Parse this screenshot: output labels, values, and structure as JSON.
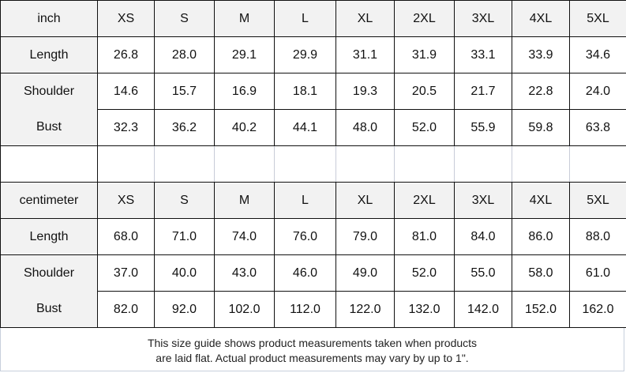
{
  "sizes": [
    "XS",
    "S",
    "M",
    "L",
    "XL",
    "2XL",
    "3XL",
    "4XL",
    "5XL"
  ],
  "tables": [
    {
      "unit": "inch",
      "rows": [
        {
          "label": "Length",
          "values": [
            "26.8",
            "28.0",
            "29.1",
            "29.9",
            "31.1",
            "31.9",
            "33.1",
            "33.9",
            "34.6"
          ]
        },
        {
          "label": "Shoulder",
          "values": [
            "14.6",
            "15.7",
            "16.9",
            "18.1",
            "19.3",
            "20.5",
            "21.7",
            "22.8",
            "24.0"
          ]
        },
        {
          "label": "Bust",
          "values": [
            "32.3",
            "36.2",
            "40.2",
            "44.1",
            "48.0",
            "52.0",
            "55.9",
            "59.8",
            "63.8"
          ]
        }
      ]
    },
    {
      "unit": "centimeter",
      "rows": [
        {
          "label": "Length",
          "values": [
            "68.0",
            "71.0",
            "74.0",
            "76.0",
            "79.0",
            "81.0",
            "84.0",
            "86.0",
            "88.0"
          ]
        },
        {
          "label": "Shoulder",
          "values": [
            "37.0",
            "40.0",
            "43.0",
            "46.0",
            "49.0",
            "52.0",
            "55.0",
            "58.0",
            "61.0"
          ]
        },
        {
          "label": "Bust",
          "values": [
            "82.0",
            "92.0",
            "102.0",
            "112.0",
            "122.0",
            "132.0",
            "142.0",
            "152.0",
            "162.0"
          ]
        }
      ]
    }
  ],
  "note": {
    "line1": "This size guide shows product measurements taken when products",
    "line2": "are laid flat. Actual product measurements may vary by up to 1\"."
  }
}
